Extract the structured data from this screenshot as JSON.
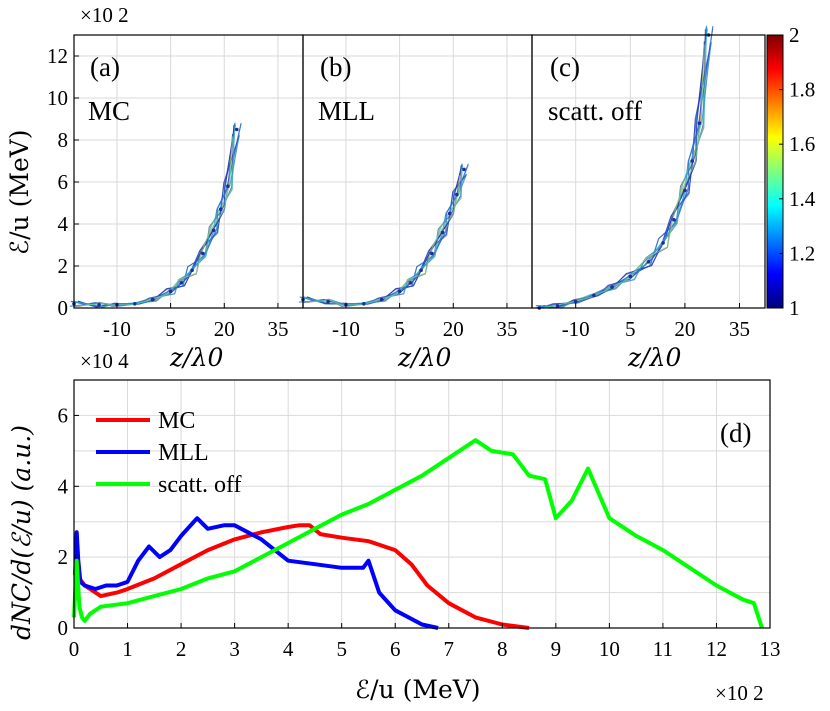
{
  "chart_data": [
    {
      "panel": "(a)",
      "type": "scatter",
      "label": "MC",
      "xlabel": "z/λ0",
      "ylabel": "ℰ/u (MeV)",
      "y_multiplier": "×10 2",
      "xlim": [
        -22,
        42
      ],
      "ylim": [
        0,
        13
      ],
      "xticks": [
        "-10",
        "5",
        "20",
        "35"
      ],
      "xtick_values": [
        -10,
        5,
        20,
        35
      ],
      "yticks": [
        "0",
        "2",
        "4",
        "6",
        "8",
        "10",
        "12"
      ],
      "ytick_values": [
        0,
        2,
        4,
        6,
        8,
        10,
        12
      ],
      "x": [
        -22,
        -15,
        -10,
        -5,
        0,
        5,
        8,
        11,
        14,
        17,
        19,
        21,
        23.5
      ],
      "y": [
        0.2,
        0.15,
        0.15,
        0.2,
        0.4,
        0.8,
        1.2,
        1.8,
        2.6,
        3.7,
        4.7,
        5.8,
        8.5
      ]
    },
    {
      "panel": "(b)",
      "type": "scatter",
      "label": "MLL",
      "xlabel": "z/λ0",
      "xlim": [
        -22,
        42
      ],
      "ylim": [
        0,
        13
      ],
      "xticks": [
        "-10",
        "5",
        "20",
        "35"
      ],
      "xtick_values": [
        -10,
        5,
        20,
        35
      ],
      "x": [
        -22,
        -15,
        -10,
        -5,
        0,
        5,
        8,
        11,
        14,
        17,
        19,
        21,
        23
      ],
      "y": [
        0.4,
        0.3,
        0.15,
        0.2,
        0.4,
        0.8,
        1.2,
        1.8,
        2.6,
        3.6,
        4.5,
        5.4,
        6.6
      ]
    },
    {
      "panel": "(c)",
      "type": "scatter",
      "label": "scatt. off",
      "xlabel": "z/λ0",
      "xlim": [
        -22,
        42
      ],
      "ylim": [
        0,
        13
      ],
      "xticks": [
        "-10",
        "5",
        "20",
        "35"
      ],
      "xtick_values": [
        -10,
        5,
        20,
        35
      ],
      "x": [
        -20,
        -15,
        -10,
        -5,
        0,
        5,
        10,
        14,
        17,
        20,
        22,
        24,
        26.5
      ],
      "y": [
        0.0,
        0.1,
        0.3,
        0.6,
        1.0,
        1.5,
        2.2,
        3.1,
        4.2,
        5.6,
        7.0,
        8.8,
        13.0
      ],
      "colorbar": {
        "ticks": [
          "1",
          "1.2",
          "1.4",
          "1.6",
          "1.8",
          "2"
        ],
        "tick_values": [
          1,
          1.2,
          1.4,
          1.6,
          1.8,
          2
        ],
        "range": [
          1,
          2
        ],
        "colormap": "jet"
      }
    },
    {
      "panel": "(d)",
      "type": "line",
      "xlabel": "ℰ/u (MeV)",
      "ylabel": "dNC/d(ℰ/u) (a.u.)",
      "x_multiplier": "×10 2",
      "y_multiplier": "×10 4",
      "xlim": [
        0,
        13
      ],
      "ylim": [
        0,
        7
      ],
      "xticks": [
        "0",
        "1",
        "2",
        "3",
        "4",
        "5",
        "6",
        "7",
        "8",
        "9",
        "10",
        "11",
        "12",
        "13"
      ],
      "xtick_values": [
        0,
        1,
        2,
        3,
        4,
        5,
        6,
        7,
        8,
        9,
        10,
        11,
        12,
        13
      ],
      "yticks": [
        "0",
        "2",
        "4",
        "6"
      ],
      "ytick_values": [
        0,
        2,
        4,
        6
      ],
      "legend_position": "top-left",
      "series": [
        {
          "name": "MC",
          "color": "#ff0000",
          "x": [
            0.02,
            0.05,
            0.08,
            0.1,
            0.2,
            0.3,
            0.5,
            0.8,
            1.0,
            1.5,
            2.0,
            2.5,
            3.0,
            3.5,
            4.0,
            4.2,
            4.4,
            4.6,
            5.0,
            5.5,
            6.0,
            6.3,
            6.6,
            7.0,
            7.5,
            8.0,
            8.5
          ],
          "y": [
            0.8,
            1.8,
            1.5,
            1.4,
            1.2,
            1.1,
            0.9,
            1.0,
            1.1,
            1.4,
            1.8,
            2.2,
            2.5,
            2.7,
            2.85,
            2.9,
            2.9,
            2.65,
            2.55,
            2.45,
            2.2,
            1.8,
            1.2,
            0.7,
            0.3,
            0.1,
            0.0
          ]
        },
        {
          "name": "MLL",
          "color": "#0000ff",
          "x": [
            0.02,
            0.05,
            0.08,
            0.12,
            0.2,
            0.4,
            0.6,
            0.8,
            1.0,
            1.2,
            1.4,
            1.6,
            1.8,
            2.0,
            2.3,
            2.5,
            2.8,
            3.0,
            3.5,
            4.0,
            4.5,
            5.0,
            5.4,
            5.5,
            5.7,
            6.0,
            6.5,
            6.8
          ],
          "y": [
            1.5,
            2.7,
            1.9,
            1.3,
            1.2,
            1.1,
            1.2,
            1.2,
            1.3,
            1.9,
            2.3,
            2.0,
            2.2,
            2.6,
            3.1,
            2.8,
            2.9,
            2.9,
            2.5,
            1.9,
            1.8,
            1.7,
            1.7,
            1.9,
            1.0,
            0.5,
            0.1,
            0.0
          ]
        },
        {
          "name": "scatt. off",
          "color": "#00ff00",
          "x": [
            0.0,
            0.05,
            0.1,
            0.15,
            0.2,
            0.3,
            0.5,
            1.0,
            1.5,
            2.0,
            2.5,
            3.0,
            3.5,
            4.0,
            4.5,
            5.0,
            5.5,
            6.0,
            6.5,
            7.0,
            7.5,
            7.8,
            8.2,
            8.5,
            8.8,
            9.0,
            9.3,
            9.6,
            10.0,
            10.5,
            11.0,
            11.5,
            12.0,
            12.5,
            12.7,
            12.85
          ],
          "y": [
            0.3,
            1.9,
            0.6,
            0.3,
            0.2,
            0.4,
            0.6,
            0.7,
            0.9,
            1.1,
            1.4,
            1.6,
            2.0,
            2.4,
            2.8,
            3.2,
            3.5,
            3.9,
            4.3,
            4.8,
            5.3,
            5.0,
            4.9,
            4.3,
            4.2,
            3.1,
            3.6,
            4.5,
            3.1,
            2.6,
            2.2,
            1.7,
            1.2,
            0.8,
            0.7,
            0.0
          ]
        }
      ]
    }
  ]
}
